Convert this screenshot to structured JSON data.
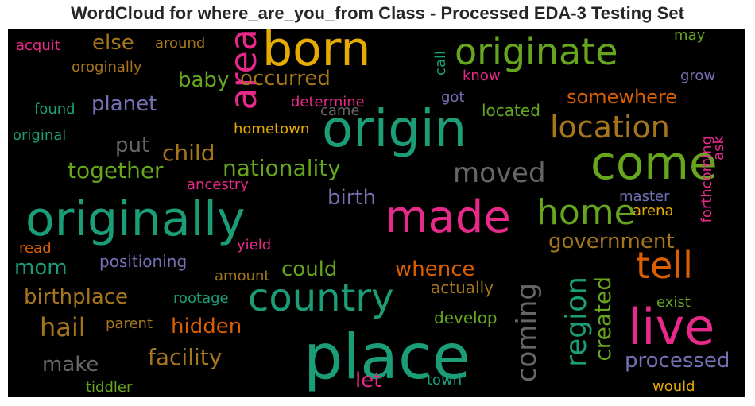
{
  "chart_data": {
    "type": "wordcloud",
    "title": "WordCloud for where_are_you_from Class - Processed EDA-3 Testing Set",
    "background": "#000000",
    "colormap": "Dark2",
    "words": [
      {
        "text": "place",
        "color": "#1b9e77"
      },
      {
        "text": "originally",
        "color": "#1b9e77"
      },
      {
        "text": "origin",
        "color": "#1b9e77"
      },
      {
        "text": "born",
        "color": "#e6ab02"
      },
      {
        "text": "live",
        "color": "#e7298a"
      },
      {
        "text": "come",
        "color": "#66a61e"
      },
      {
        "text": "made",
        "color": "#e7298a"
      },
      {
        "text": "country",
        "color": "#1b9e77"
      },
      {
        "text": "originate",
        "color": "#66a61e"
      },
      {
        "text": "tell",
        "color": "#d95f02"
      },
      {
        "text": "area",
        "color": "#e7298a"
      },
      {
        "text": "home",
        "color": "#66a61e"
      },
      {
        "text": "location",
        "color": "#a6761d"
      },
      {
        "text": "region",
        "color": "#1b9e77"
      },
      {
        "text": "coming",
        "color": "#666666"
      },
      {
        "text": "moved",
        "color": "#666666"
      },
      {
        "text": "created",
        "color": "#66a61e"
      },
      {
        "text": "hail",
        "color": "#a6761d"
      },
      {
        "text": "nationality",
        "color": "#66a61e"
      },
      {
        "text": "facility",
        "color": "#a6761d"
      },
      {
        "text": "together",
        "color": "#66a61e"
      },
      {
        "text": "birthplace",
        "color": "#a6761d"
      },
      {
        "text": "hidden",
        "color": "#d95f02"
      },
      {
        "text": "occurred",
        "color": "#a6761d"
      },
      {
        "text": "child",
        "color": "#a6761d"
      },
      {
        "text": "government",
        "color": "#a6761d"
      },
      {
        "text": "processed",
        "color": "#7570b3"
      },
      {
        "text": "whence",
        "color": "#d95f02"
      },
      {
        "text": "planet",
        "color": "#7570b3"
      },
      {
        "text": "somewhere",
        "color": "#d95f02"
      },
      {
        "text": "could",
        "color": "#66a61e"
      },
      {
        "text": "birth",
        "color": "#7570b3"
      },
      {
        "text": "make",
        "color": "#666666"
      },
      {
        "text": "baby",
        "color": "#66a61e"
      },
      {
        "text": "else",
        "color": "#a6761d"
      },
      {
        "text": "mom",
        "color": "#1b9e77"
      },
      {
        "text": "put",
        "color": "#666666"
      },
      {
        "text": "let",
        "color": "#e7298a"
      },
      {
        "text": "hometown",
        "color": "#e6ab02"
      },
      {
        "text": "located",
        "color": "#66a61e"
      },
      {
        "text": "positioning",
        "color": "#7570b3"
      },
      {
        "text": "actually",
        "color": "#a6761d"
      },
      {
        "text": "develop",
        "color": "#66a61e"
      },
      {
        "text": "forthcoming",
        "color": "#e7298a"
      },
      {
        "text": "determine",
        "color": "#e7298a"
      },
      {
        "text": "ancestry",
        "color": "#e7298a"
      },
      {
        "text": "original",
        "color": "#1b9e77"
      },
      {
        "text": "oroginally",
        "color": "#a6761d"
      },
      {
        "text": "acquit",
        "color": "#e7298a"
      },
      {
        "text": "around",
        "color": "#a6761d"
      },
      {
        "text": "found",
        "color": "#1b9e77"
      },
      {
        "text": "rootage",
        "color": "#1b9e77"
      },
      {
        "text": "parent",
        "color": "#a6761d"
      },
      {
        "text": "tiddler",
        "color": "#66a61e"
      },
      {
        "text": "read",
        "color": "#d95f02"
      },
      {
        "text": "amount",
        "color": "#a6761d"
      },
      {
        "text": "yield",
        "color": "#e7298a"
      },
      {
        "text": "master",
        "color": "#7570b3"
      },
      {
        "text": "arena",
        "color": "#e6ab02"
      },
      {
        "text": "would",
        "color": "#e6ab02"
      },
      {
        "text": "town",
        "color": "#1b9e77"
      },
      {
        "text": "exist",
        "color": "#66a61e"
      },
      {
        "text": "grow",
        "color": "#7570b3"
      },
      {
        "text": "may",
        "color": "#66a61e"
      },
      {
        "text": "know",
        "color": "#e7298a"
      },
      {
        "text": "got",
        "color": "#7570b3"
      },
      {
        "text": "came",
        "color": "#666666"
      },
      {
        "text": "call",
        "color": "#1b9e77"
      },
      {
        "text": "ask",
        "color": "#e7298a"
      }
    ]
  }
}
